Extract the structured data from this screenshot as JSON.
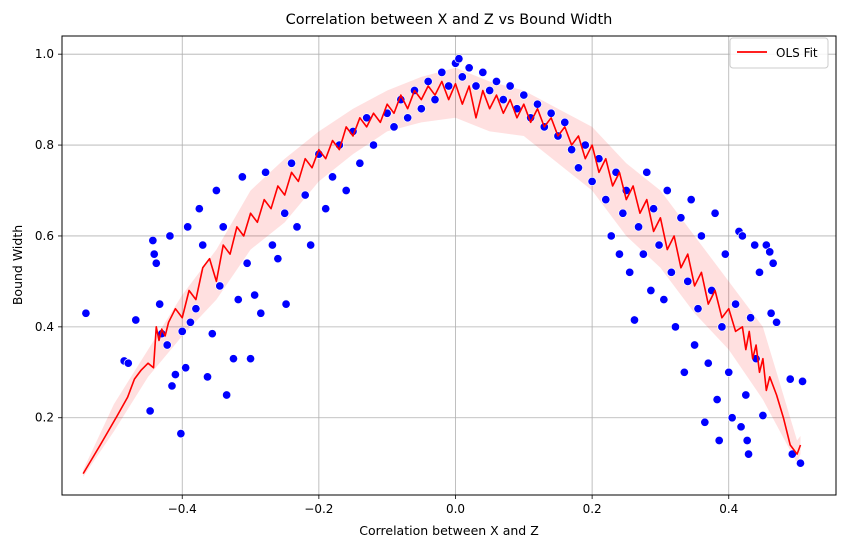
{
  "chart_data": {
    "type": "scatter",
    "title": "Correlation between X and Z vs Bound Width",
    "xlabel": "Correlation between X and Z",
    "ylabel": "Bound Width",
    "xlim": [
      -0.576,
      0.557
    ],
    "ylim": [
      0.03,
      1.04
    ],
    "xticks": [
      -0.4,
      -0.2,
      0.0,
      0.2,
      0.4
    ],
    "xtick_labels": [
      "−0.4",
      "−0.2",
      "0.0",
      "0.2",
      "0.4"
    ],
    "yticks": [
      0.2,
      0.4,
      0.6,
      0.8,
      1.0
    ],
    "ytick_labels": [
      "0.2",
      "0.4",
      "0.6",
      "0.8",
      "1.0"
    ],
    "grid": true,
    "legend": {
      "position": "top-right",
      "entries": [
        {
          "label": "OLS Fit",
          "color": "#ff0000"
        }
      ]
    },
    "scatter_color": "#0000ff",
    "fit_color": "#ff0000",
    "scatter_points": [
      [
        -0.541,
        0.43
      ],
      [
        -0.485,
        0.325
      ],
      [
        -0.479,
        0.32
      ],
      [
        -0.468,
        0.415
      ],
      [
        -0.447,
        0.215
      ],
      [
        -0.443,
        0.59
      ],
      [
        -0.441,
        0.56
      ],
      [
        -0.438,
        0.54
      ],
      [
        -0.433,
        0.45
      ],
      [
        -0.43,
        0.385
      ],
      [
        -0.422,
        0.36
      ],
      [
        -0.418,
        0.6
      ],
      [
        -0.415,
        0.27
      ],
      [
        -0.41,
        0.295
      ],
      [
        -0.402,
        0.165
      ],
      [
        -0.4,
        0.39
      ],
      [
        -0.395,
        0.31
      ],
      [
        -0.392,
        0.62
      ],
      [
        -0.388,
        0.41
      ],
      [
        -0.38,
        0.44
      ],
      [
        -0.375,
        0.66
      ],
      [
        -0.37,
        0.58
      ],
      [
        -0.363,
        0.29
      ],
      [
        -0.356,
        0.385
      ],
      [
        -0.35,
        0.7
      ],
      [
        -0.345,
        0.49
      ],
      [
        -0.34,
        0.62
      ],
      [
        -0.335,
        0.25
      ],
      [
        -0.325,
        0.33
      ],
      [
        -0.318,
        0.46
      ],
      [
        -0.312,
        0.73
      ],
      [
        -0.305,
        0.54
      ],
      [
        -0.3,
        0.33
      ],
      [
        -0.294,
        0.47
      ],
      [
        -0.285,
        0.43
      ],
      [
        -0.278,
        0.74
      ],
      [
        -0.268,
        0.58
      ],
      [
        -0.26,
        0.55
      ],
      [
        -0.25,
        0.65
      ],
      [
        -0.248,
        0.45
      ],
      [
        -0.24,
        0.76
      ],
      [
        -0.232,
        0.62
      ],
      [
        -0.22,
        0.69
      ],
      [
        -0.212,
        0.58
      ],
      [
        -0.2,
        0.78
      ],
      [
        -0.19,
        0.66
      ],
      [
        -0.18,
        0.73
      ],
      [
        -0.17,
        0.8
      ],
      [
        -0.16,
        0.7
      ],
      [
        -0.15,
        0.83
      ],
      [
        -0.14,
        0.76
      ],
      [
        -0.13,
        0.86
      ],
      [
        -0.12,
        0.8
      ],
      [
        -0.1,
        0.87
      ],
      [
        -0.09,
        0.84
      ],
      [
        -0.08,
        0.9
      ],
      [
        -0.07,
        0.86
      ],
      [
        -0.06,
        0.92
      ],
      [
        -0.05,
        0.88
      ],
      [
        -0.04,
        0.94
      ],
      [
        -0.03,
        0.9
      ],
      [
        -0.02,
        0.96
      ],
      [
        -0.01,
        0.93
      ],
      [
        0.0,
        0.98
      ],
      [
        0.005,
        0.99
      ],
      [
        0.01,
        0.95
      ],
      [
        0.02,
        0.97
      ],
      [
        0.03,
        0.93
      ],
      [
        0.04,
        0.96
      ],
      [
        0.05,
        0.92
      ],
      [
        0.06,
        0.94
      ],
      [
        0.07,
        0.9
      ],
      [
        0.08,
        0.93
      ],
      [
        0.09,
        0.88
      ],
      [
        0.1,
        0.91
      ],
      [
        0.11,
        0.86
      ],
      [
        0.12,
        0.89
      ],
      [
        0.13,
        0.84
      ],
      [
        0.14,
        0.87
      ],
      [
        0.15,
        0.82
      ],
      [
        0.16,
        0.85
      ],
      [
        0.17,
        0.79
      ],
      [
        0.18,
        0.75
      ],
      [
        0.19,
        0.8
      ],
      [
        0.2,
        0.72
      ],
      [
        0.21,
        0.77
      ],
      [
        0.22,
        0.68
      ],
      [
        0.228,
        0.6
      ],
      [
        0.235,
        0.74
      ],
      [
        0.24,
        0.56
      ],
      [
        0.245,
        0.65
      ],
      [
        0.25,
        0.7
      ],
      [
        0.255,
        0.52
      ],
      [
        0.262,
        0.415
      ],
      [
        0.268,
        0.62
      ],
      [
        0.275,
        0.56
      ],
      [
        0.28,
        0.74
      ],
      [
        0.286,
        0.48
      ],
      [
        0.29,
        0.66
      ],
      [
        0.298,
        0.58
      ],
      [
        0.305,
        0.46
      ],
      [
        0.31,
        0.7
      ],
      [
        0.316,
        0.52
      ],
      [
        0.322,
        0.4
      ],
      [
        0.33,
        0.64
      ],
      [
        0.335,
        0.3
      ],
      [
        0.34,
        0.5
      ],
      [
        0.345,
        0.68
      ],
      [
        0.35,
        0.36
      ],
      [
        0.355,
        0.44
      ],
      [
        0.36,
        0.6
      ],
      [
        0.365,
        0.19
      ],
      [
        0.37,
        0.32
      ],
      [
        0.375,
        0.48
      ],
      [
        0.38,
        0.65
      ],
      [
        0.383,
        0.24
      ],
      [
        0.386,
        0.15
      ],
      [
        0.39,
        0.4
      ],
      [
        0.395,
        0.56
      ],
      [
        0.4,
        0.3
      ],
      [
        0.405,
        0.2
      ],
      [
        0.41,
        0.45
      ],
      [
        0.415,
        0.61
      ],
      [
        0.418,
        0.18
      ],
      [
        0.42,
        0.6
      ],
      [
        0.425,
        0.25
      ],
      [
        0.427,
        0.15
      ],
      [
        0.429,
        0.12
      ],
      [
        0.432,
        0.42
      ],
      [
        0.438,
        0.58
      ],
      [
        0.44,
        0.33
      ],
      [
        0.445,
        0.52
      ],
      [
        0.45,
        0.205
      ],
      [
        0.455,
        0.58
      ],
      [
        0.46,
        0.565
      ],
      [
        0.462,
        0.43
      ],
      [
        0.465,
        0.54
      ],
      [
        0.47,
        0.41
      ],
      [
        0.49,
        0.285
      ],
      [
        0.493,
        0.12
      ],
      [
        0.505,
        0.1
      ],
      [
        0.508,
        0.28
      ]
    ],
    "fit_line": [
      [
        -0.545,
        0.077
      ],
      [
        -0.52,
        0.14
      ],
      [
        -0.495,
        0.205
      ],
      [
        -0.48,
        0.245
      ],
      [
        -0.47,
        0.285
      ],
      [
        -0.46,
        0.305
      ],
      [
        -0.45,
        0.32
      ],
      [
        -0.442,
        0.31
      ],
      [
        -0.438,
        0.4
      ],
      [
        -0.434,
        0.37
      ],
      [
        -0.43,
        0.395
      ],
      [
        -0.425,
        0.38
      ],
      [
        -0.42,
        0.41
      ],
      [
        -0.41,
        0.44
      ],
      [
        -0.4,
        0.42
      ],
      [
        -0.39,
        0.48
      ],
      [
        -0.38,
        0.46
      ],
      [
        -0.37,
        0.53
      ],
      [
        -0.36,
        0.55
      ],
      [
        -0.35,
        0.5
      ],
      [
        -0.34,
        0.58
      ],
      [
        -0.33,
        0.56
      ],
      [
        -0.32,
        0.62
      ],
      [
        -0.31,
        0.6
      ],
      [
        -0.3,
        0.65
      ],
      [
        -0.29,
        0.63
      ],
      [
        -0.28,
        0.68
      ],
      [
        -0.27,
        0.66
      ],
      [
        -0.26,
        0.71
      ],
      [
        -0.25,
        0.69
      ],
      [
        -0.24,
        0.74
      ],
      [
        -0.23,
        0.72
      ],
      [
        -0.22,
        0.77
      ],
      [
        -0.21,
        0.75
      ],
      [
        -0.2,
        0.79
      ],
      [
        -0.19,
        0.77
      ],
      [
        -0.18,
        0.81
      ],
      [
        -0.17,
        0.79
      ],
      [
        -0.16,
        0.84
      ],
      [
        -0.15,
        0.82
      ],
      [
        -0.14,
        0.86
      ],
      [
        -0.13,
        0.84
      ],
      [
        -0.12,
        0.87
      ],
      [
        -0.11,
        0.85
      ],
      [
        -0.1,
        0.89
      ],
      [
        -0.09,
        0.87
      ],
      [
        -0.08,
        0.91
      ],
      [
        -0.07,
        0.88
      ],
      [
        -0.06,
        0.92
      ],
      [
        -0.05,
        0.9
      ],
      [
        -0.04,
        0.93
      ],
      [
        -0.03,
        0.91
      ],
      [
        -0.02,
        0.94
      ],
      [
        -0.01,
        0.9
      ],
      [
        0.0,
        0.935
      ],
      [
        0.01,
        0.89
      ],
      [
        0.02,
        0.93
      ],
      [
        0.03,
        0.86
      ],
      [
        0.04,
        0.92
      ],
      [
        0.05,
        0.88
      ],
      [
        0.06,
        0.91
      ],
      [
        0.07,
        0.87
      ],
      [
        0.08,
        0.9
      ],
      [
        0.09,
        0.86
      ],
      [
        0.1,
        0.89
      ],
      [
        0.11,
        0.85
      ],
      [
        0.12,
        0.88
      ],
      [
        0.13,
        0.84
      ],
      [
        0.14,
        0.86
      ],
      [
        0.15,
        0.82
      ],
      [
        0.16,
        0.84
      ],
      [
        0.17,
        0.8
      ],
      [
        0.18,
        0.82
      ],
      [
        0.19,
        0.77
      ],
      [
        0.2,
        0.8
      ],
      [
        0.21,
        0.74
      ],
      [
        0.22,
        0.77
      ],
      [
        0.23,
        0.71
      ],
      [
        0.24,
        0.74
      ],
      [
        0.25,
        0.68
      ],
      [
        0.26,
        0.71
      ],
      [
        0.27,
        0.65
      ],
      [
        0.28,
        0.68
      ],
      [
        0.29,
        0.61
      ],
      [
        0.3,
        0.64
      ],
      [
        0.31,
        0.57
      ],
      [
        0.32,
        0.6
      ],
      [
        0.33,
        0.53
      ],
      [
        0.34,
        0.56
      ],
      [
        0.35,
        0.49
      ],
      [
        0.36,
        0.52
      ],
      [
        0.37,
        0.45
      ],
      [
        0.38,
        0.48
      ],
      [
        0.39,
        0.42
      ],
      [
        0.4,
        0.44
      ],
      [
        0.41,
        0.39
      ],
      [
        0.42,
        0.4
      ],
      [
        0.425,
        0.35
      ],
      [
        0.43,
        0.39
      ],
      [
        0.435,
        0.33
      ],
      [
        0.44,
        0.36
      ],
      [
        0.445,
        0.3
      ],
      [
        0.45,
        0.33
      ],
      [
        0.455,
        0.26
      ],
      [
        0.46,
        0.29
      ],
      [
        0.47,
        0.25
      ],
      [
        0.48,
        0.2
      ],
      [
        0.49,
        0.14
      ],
      [
        0.5,
        0.12
      ],
      [
        0.505,
        0.14
      ]
    ],
    "fit_band": [
      [
        -0.545,
        0.07,
        0.085
      ],
      [
        -0.5,
        0.17,
        0.23
      ],
      [
        -0.45,
        0.29,
        0.35
      ],
      [
        -0.4,
        0.38,
        0.47
      ],
      [
        -0.35,
        0.46,
        0.57
      ],
      [
        -0.3,
        0.57,
        0.7
      ],
      [
        -0.25,
        0.63,
        0.77
      ],
      [
        -0.2,
        0.72,
        0.83
      ],
      [
        -0.15,
        0.78,
        0.88
      ],
      [
        -0.1,
        0.83,
        0.92
      ],
      [
        -0.05,
        0.85,
        0.95
      ],
      [
        0.0,
        0.86,
        0.97
      ],
      [
        0.05,
        0.83,
        0.94
      ],
      [
        0.1,
        0.82,
        0.92
      ],
      [
        0.15,
        0.76,
        0.88
      ],
      [
        0.2,
        0.7,
        0.84
      ],
      [
        0.25,
        0.6,
        0.76
      ],
      [
        0.3,
        0.53,
        0.7
      ],
      [
        0.35,
        0.43,
        0.6
      ],
      [
        0.4,
        0.35,
        0.5
      ],
      [
        0.45,
        0.24,
        0.4
      ],
      [
        0.5,
        0.1,
        0.15
      ],
      [
        0.505,
        0.12,
        0.16
      ]
    ]
  }
}
